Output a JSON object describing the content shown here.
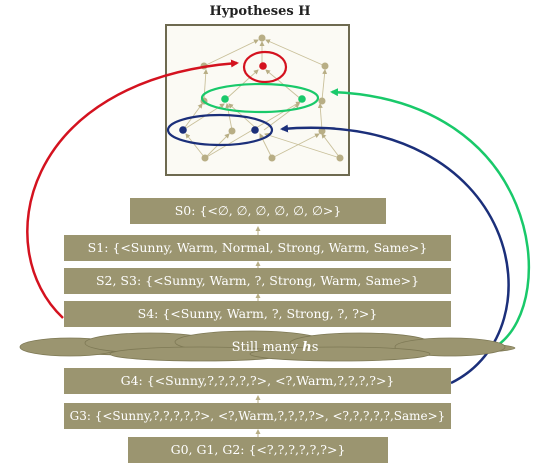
{
  "title": "Hypotheses H",
  "specific_boundary": [
    {
      "id": "s0",
      "text": "S0: {<∅, ∅, ∅, ∅, ∅, ∅>}"
    },
    {
      "id": "s1",
      "text": "S1: {<Sunny, Warm, Normal, Strong, Warm, Same>}"
    },
    {
      "id": "s2s3",
      "text": "S2, S3: {<Sunny, Warm, ?, Strong, Warm, Same>}"
    },
    {
      "id": "s4",
      "text": "S4: {<Sunny, Warm, ?, Strong, ?, ?>}"
    }
  ],
  "cloud": {
    "prefix": "Still many ",
    "emph": "h",
    "suffix": "s"
  },
  "general_boundary": [
    {
      "id": "g4",
      "text": "G4: {<Sunny,?,?,?,?,?>, <?,Warm,?,?,?,?>}"
    },
    {
      "id": "g3",
      "text": "G3: {<Sunny,?,?,?,?,?>, <?,Warm,?,?,?,?>, <?,?,?,?,?,Same>}"
    },
    {
      "id": "g0g1g2",
      "text": "G0, G1, G2: {<?,?,?,?,?,?>}"
    }
  ],
  "colors": {
    "box_fill": "#9b9570",
    "red_arrow": "#d4121f",
    "green_arrow": "#19c96a",
    "blue_arrow": "#1b2f7a",
    "node": "#b8ae85"
  }
}
